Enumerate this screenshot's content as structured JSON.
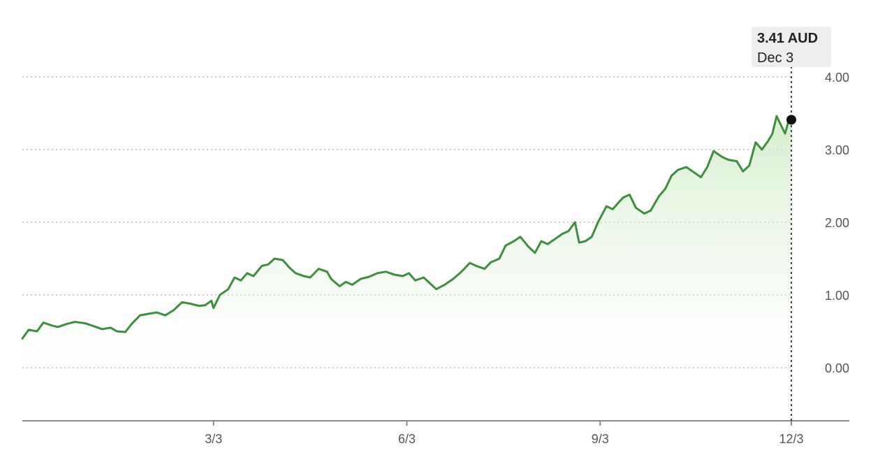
{
  "chart_data": {
    "type": "area",
    "title": "",
    "xlabel": "",
    "ylabel": "",
    "unit": "AUD",
    "x_ticks": [
      {
        "date": "2024-03-03",
        "label": "3/3"
      },
      {
        "date": "2024-06-03",
        "label": "6/3"
      },
      {
        "date": "2024-09-03",
        "label": "9/3"
      },
      {
        "date": "2024-12-03",
        "label": "12/3"
      }
    ],
    "y_ticks": [
      0,
      1,
      2,
      3,
      4
    ],
    "y_tick_labels": [
      "0.00",
      "1.00",
      "2.00",
      "3.00",
      "4.00"
    ],
    "ylim": [
      -0.7,
      4.0
    ],
    "xlim": [
      "2023-12-03",
      "2024-12-03"
    ],
    "grid": "horizontal dotted",
    "colors": {
      "line": "#3c8f3c",
      "fill": "#e8f5e2"
    },
    "tooltip": {
      "value": "3.41 AUD",
      "date": "Dec 3"
    },
    "series": [
      {
        "points": [
          [
            "2023-12-03",
            0.4
          ],
          [
            "2023-12-06",
            0.52
          ],
          [
            "2023-12-10",
            0.5
          ],
          [
            "2023-12-13",
            0.62
          ],
          [
            "2023-12-17",
            0.58
          ],
          [
            "2023-12-20",
            0.56
          ],
          [
            "2023-12-24",
            0.6
          ],
          [
            "2023-12-28",
            0.63
          ],
          [
            "2024-01-02",
            0.61
          ],
          [
            "2024-01-06",
            0.57
          ],
          [
            "2024-01-10",
            0.53
          ],
          [
            "2024-01-14",
            0.55
          ],
          [
            "2024-01-17",
            0.5
          ],
          [
            "2024-01-21",
            0.49
          ],
          [
            "2024-01-24",
            0.6
          ],
          [
            "2024-01-28",
            0.72
          ],
          [
            "2024-02-01",
            0.74
          ],
          [
            "2024-02-05",
            0.76
          ],
          [
            "2024-02-09",
            0.72
          ],
          [
            "2024-02-13",
            0.79
          ],
          [
            "2024-02-17",
            0.9
          ],
          [
            "2024-02-21",
            0.88
          ],
          [
            "2024-02-25",
            0.85
          ],
          [
            "2024-02-28",
            0.86
          ],
          [
            "2024-03-02",
            0.92
          ],
          [
            "2024-03-03",
            0.82
          ],
          [
            "2024-03-06",
            1.0
          ],
          [
            "2024-03-10",
            1.08
          ],
          [
            "2024-03-13",
            1.24
          ],
          [
            "2024-03-16",
            1.2
          ],
          [
            "2024-03-19",
            1.3
          ],
          [
            "2024-03-22",
            1.26
          ],
          [
            "2024-03-26",
            1.4
          ],
          [
            "2024-03-29",
            1.42
          ],
          [
            "2024-04-01",
            1.5
          ],
          [
            "2024-04-05",
            1.48
          ],
          [
            "2024-04-08",
            1.38
          ],
          [
            "2024-04-11",
            1.3
          ],
          [
            "2024-04-15",
            1.26
          ],
          [
            "2024-04-18",
            1.24
          ],
          [
            "2024-04-22",
            1.36
          ],
          [
            "2024-04-26",
            1.32
          ],
          [
            "2024-04-28",
            1.22
          ],
          [
            "2024-05-02",
            1.12
          ],
          [
            "2024-05-05",
            1.18
          ],
          [
            "2024-05-08",
            1.14
          ],
          [
            "2024-05-12",
            1.22
          ],
          [
            "2024-05-16",
            1.25
          ],
          [
            "2024-05-20",
            1.3
          ],
          [
            "2024-05-24",
            1.32
          ],
          [
            "2024-05-28",
            1.28
          ],
          [
            "2024-06-01",
            1.26
          ],
          [
            "2024-06-04",
            1.3
          ],
          [
            "2024-06-07",
            1.2
          ],
          [
            "2024-06-11",
            1.24
          ],
          [
            "2024-06-14",
            1.16
          ],
          [
            "2024-06-17",
            1.08
          ],
          [
            "2024-06-21",
            1.14
          ],
          [
            "2024-06-25",
            1.22
          ],
          [
            "2024-06-29",
            1.32
          ],
          [
            "2024-07-03",
            1.44
          ],
          [
            "2024-07-06",
            1.4
          ],
          [
            "2024-07-10",
            1.36
          ],
          [
            "2024-07-13",
            1.45
          ],
          [
            "2024-07-17",
            1.5
          ],
          [
            "2024-07-20",
            1.68
          ],
          [
            "2024-07-24",
            1.74
          ],
          [
            "2024-07-27",
            1.8
          ],
          [
            "2024-07-31",
            1.66
          ],
          [
            "2024-08-03",
            1.58
          ],
          [
            "2024-08-06",
            1.74
          ],
          [
            "2024-08-09",
            1.7
          ],
          [
            "2024-08-12",
            1.76
          ],
          [
            "2024-08-16",
            1.84
          ],
          [
            "2024-08-19",
            1.88
          ],
          [
            "2024-08-22",
            2.0
          ],
          [
            "2024-08-24",
            1.72
          ],
          [
            "2024-08-27",
            1.74
          ],
          [
            "2024-08-30",
            1.8
          ],
          [
            "2024-09-02",
            2.0
          ],
          [
            "2024-09-06",
            2.22
          ],
          [
            "2024-09-09",
            2.18
          ],
          [
            "2024-09-12",
            2.28
          ],
          [
            "2024-09-14",
            2.34
          ],
          [
            "2024-09-17",
            2.38
          ],
          [
            "2024-09-20",
            2.2
          ],
          [
            "2024-09-24",
            2.12
          ],
          [
            "2024-09-27",
            2.16
          ],
          [
            "2024-10-01",
            2.36
          ],
          [
            "2024-10-04",
            2.46
          ],
          [
            "2024-10-07",
            2.64
          ],
          [
            "2024-10-10",
            2.72
          ],
          [
            "2024-10-14",
            2.76
          ],
          [
            "2024-10-17",
            2.7
          ],
          [
            "2024-10-21",
            2.62
          ],
          [
            "2024-10-24",
            2.76
          ],
          [
            "2024-10-27",
            2.98
          ],
          [
            "2024-10-31",
            2.9
          ],
          [
            "2024-11-03",
            2.86
          ],
          [
            "2024-11-07",
            2.84
          ],
          [
            "2024-11-10",
            2.7
          ],
          [
            "2024-11-13",
            2.78
          ],
          [
            "2024-11-16",
            3.1
          ],
          [
            "2024-11-19",
            3.0
          ],
          [
            "2024-11-22",
            3.12
          ],
          [
            "2024-11-24",
            3.22
          ],
          [
            "2024-11-26",
            3.46
          ],
          [
            "2024-11-28",
            3.34
          ],
          [
            "2024-11-30",
            3.22
          ],
          [
            "2024-12-01",
            3.32
          ],
          [
            "2024-12-02",
            3.44
          ],
          [
            "2024-12-03",
            3.41
          ]
        ]
      }
    ]
  }
}
